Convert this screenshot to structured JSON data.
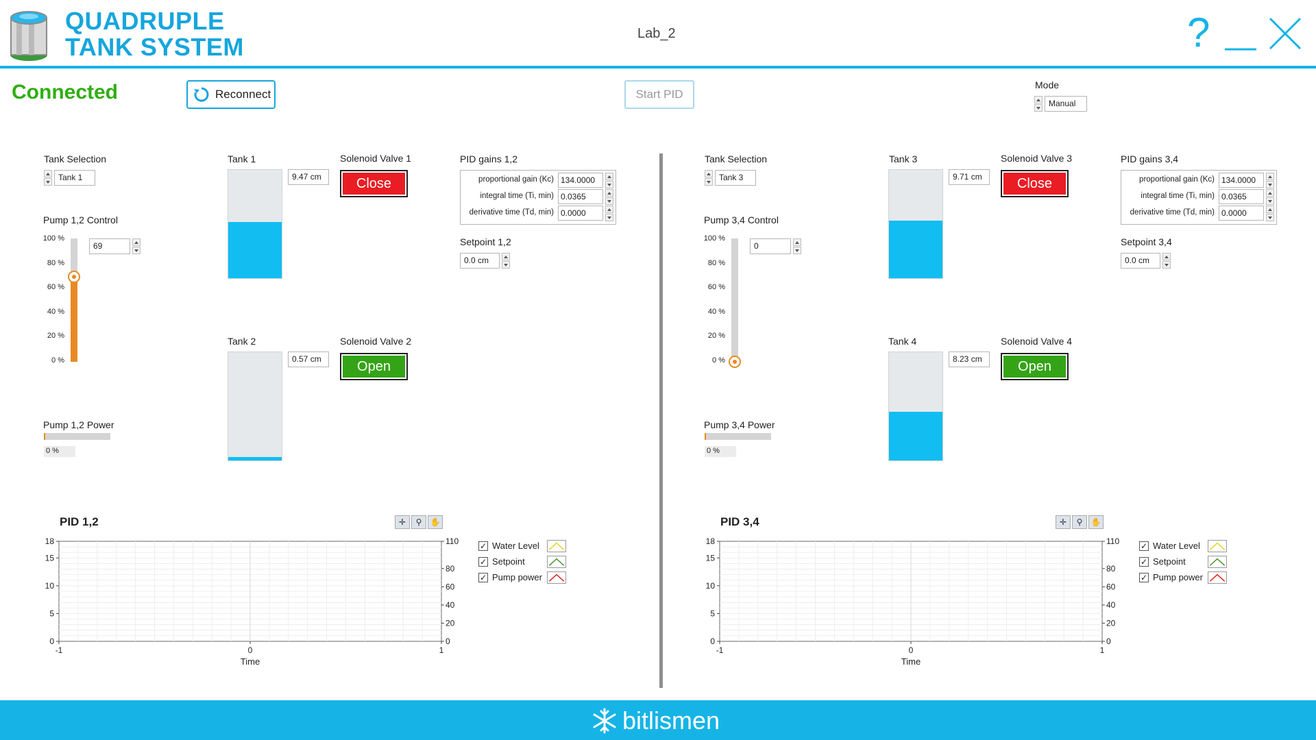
{
  "header": {
    "title_line1": "QUADRUPLE",
    "title_line2": "TANK SYSTEM",
    "window_title": "Lab_2",
    "help_glyph": "?"
  },
  "topbar": {
    "status": "Connected",
    "reconnect_label": "Reconnect",
    "start_pid_label": "Start PID",
    "mode_label": "Mode",
    "mode_value": "Manual"
  },
  "panels": [
    {
      "tank_selection_label": "Tank Selection",
      "tank_selection_value": "Tank 1",
      "pump_control_label": "Pump 1,2 Control",
      "pump_value": "69",
      "pump_fraction": 0.69,
      "scale_ticks": [
        "100 %",
        "80 %",
        "60 %",
        "40 %",
        "20 %",
        "0 %"
      ],
      "pump_power_label": "Pump 1,2 Power",
      "pump_power_value": "0 %",
      "pump_power_fraction": 0.02,
      "upper_tank": {
        "label": "Tank 1",
        "level": "9.47 cm",
        "fill_fraction": 0.52
      },
      "lower_tank": {
        "label": "Tank 2",
        "level": "0.57 cm",
        "fill_fraction": 0.03
      },
      "upper_valve": {
        "label": "Solenoid Valve 1",
        "state": "Close"
      },
      "lower_valve": {
        "label": "Solenoid Valve 2",
        "state": "Open"
      },
      "pid_gains_label": "PID gains 1,2",
      "pid_gains": [
        {
          "label": "proportional gain (Kc)",
          "value": "134.0000"
        },
        {
          "label": "integral time (Ti, min)",
          "value": "0.0365"
        },
        {
          "label": "derivative time (Td, min)",
          "value": "0.0000"
        }
      ],
      "setpoint_label": "Setpoint 1,2",
      "setpoint_value": "0.0 cm",
      "chart_title": "PID 1,2"
    },
    {
      "tank_selection_label": "Tank Selection",
      "tank_selection_value": "Tank 3",
      "pump_control_label": "Pump 3,4 Control",
      "pump_value": "0",
      "pump_fraction": 0.0,
      "scale_ticks": [
        "100 %",
        "80 %",
        "60 %",
        "40 %",
        "20 %",
        "0 %"
      ],
      "pump_power_label": "Pump 3,4 Power",
      "pump_power_value": "0 %",
      "pump_power_fraction": 0.02,
      "upper_tank": {
        "label": "Tank 3",
        "level": "9.71 cm",
        "fill_fraction": 0.53
      },
      "lower_tank": {
        "label": "Tank 4",
        "level": "8.23 cm",
        "fill_fraction": 0.45
      },
      "upper_valve": {
        "label": "Solenoid Valve 3",
        "state": "Close"
      },
      "lower_valve": {
        "label": "Solenoid Valve 4",
        "state": "Open"
      },
      "pid_gains_label": "PID gains 3,4",
      "pid_gains": [
        {
          "label": "proportional gain (Kc)",
          "value": "134.0000"
        },
        {
          "label": "integral time (Ti, min)",
          "value": "0.0365"
        },
        {
          "label": "derivative time (Td, min)",
          "value": "0.0000"
        }
      ],
      "setpoint_label": "Setpoint 3,4",
      "setpoint_value": "0.0 cm",
      "chart_title": "PID 3,4"
    }
  ],
  "chart_data": [
    {
      "type": "line",
      "title": "PID 1,2",
      "xlabel": "Time",
      "xlim": [
        -1,
        1
      ],
      "x_ticks": [
        "-1",
        "0",
        "1"
      ],
      "ylim_left": [
        0,
        18
      ],
      "y_ticks_left": [
        "18",
        "15",
        "10",
        "5",
        "0"
      ],
      "ylim_right": [
        0,
        110
      ],
      "y_ticks_right": [
        "110",
        "80",
        "60",
        "40",
        "20",
        "0"
      ],
      "grid": true,
      "series": [
        {
          "name": "Water Level",
          "color": "#e8d21c",
          "values": []
        },
        {
          "name": "Setpoint",
          "color": "#4b8f2a",
          "values": []
        },
        {
          "name": "Pump power",
          "color": "#e21d1d",
          "values": []
        }
      ]
    },
    {
      "type": "line",
      "title": "PID 3,4",
      "xlabel": "Time",
      "xlim": [
        -1,
        1
      ],
      "x_ticks": [
        "-1",
        "0",
        "1"
      ],
      "ylim_left": [
        0,
        18
      ],
      "y_ticks_left": [
        "18",
        "15",
        "10",
        "5",
        "0"
      ],
      "ylim_right": [
        0,
        110
      ],
      "y_ticks_right": [
        "110",
        "80",
        "60",
        "40",
        "20",
        "0"
      ],
      "grid": true,
      "series": [
        {
          "name": "Water Level",
          "color": "#e8d21c",
          "values": []
        },
        {
          "name": "Setpoint",
          "color": "#4b8f2a",
          "values": []
        },
        {
          "name": "Pump power",
          "color": "#e21d1d",
          "values": []
        }
      ]
    }
  ],
  "footer": {
    "brand": "bitlismen"
  },
  "colors": {
    "accent": "#16b4e6",
    "connected": "#2fae12",
    "valve_close": "#ea1c24",
    "valve_open": "#34a416",
    "water": "#12bdf2",
    "pump": "#e88a23"
  }
}
